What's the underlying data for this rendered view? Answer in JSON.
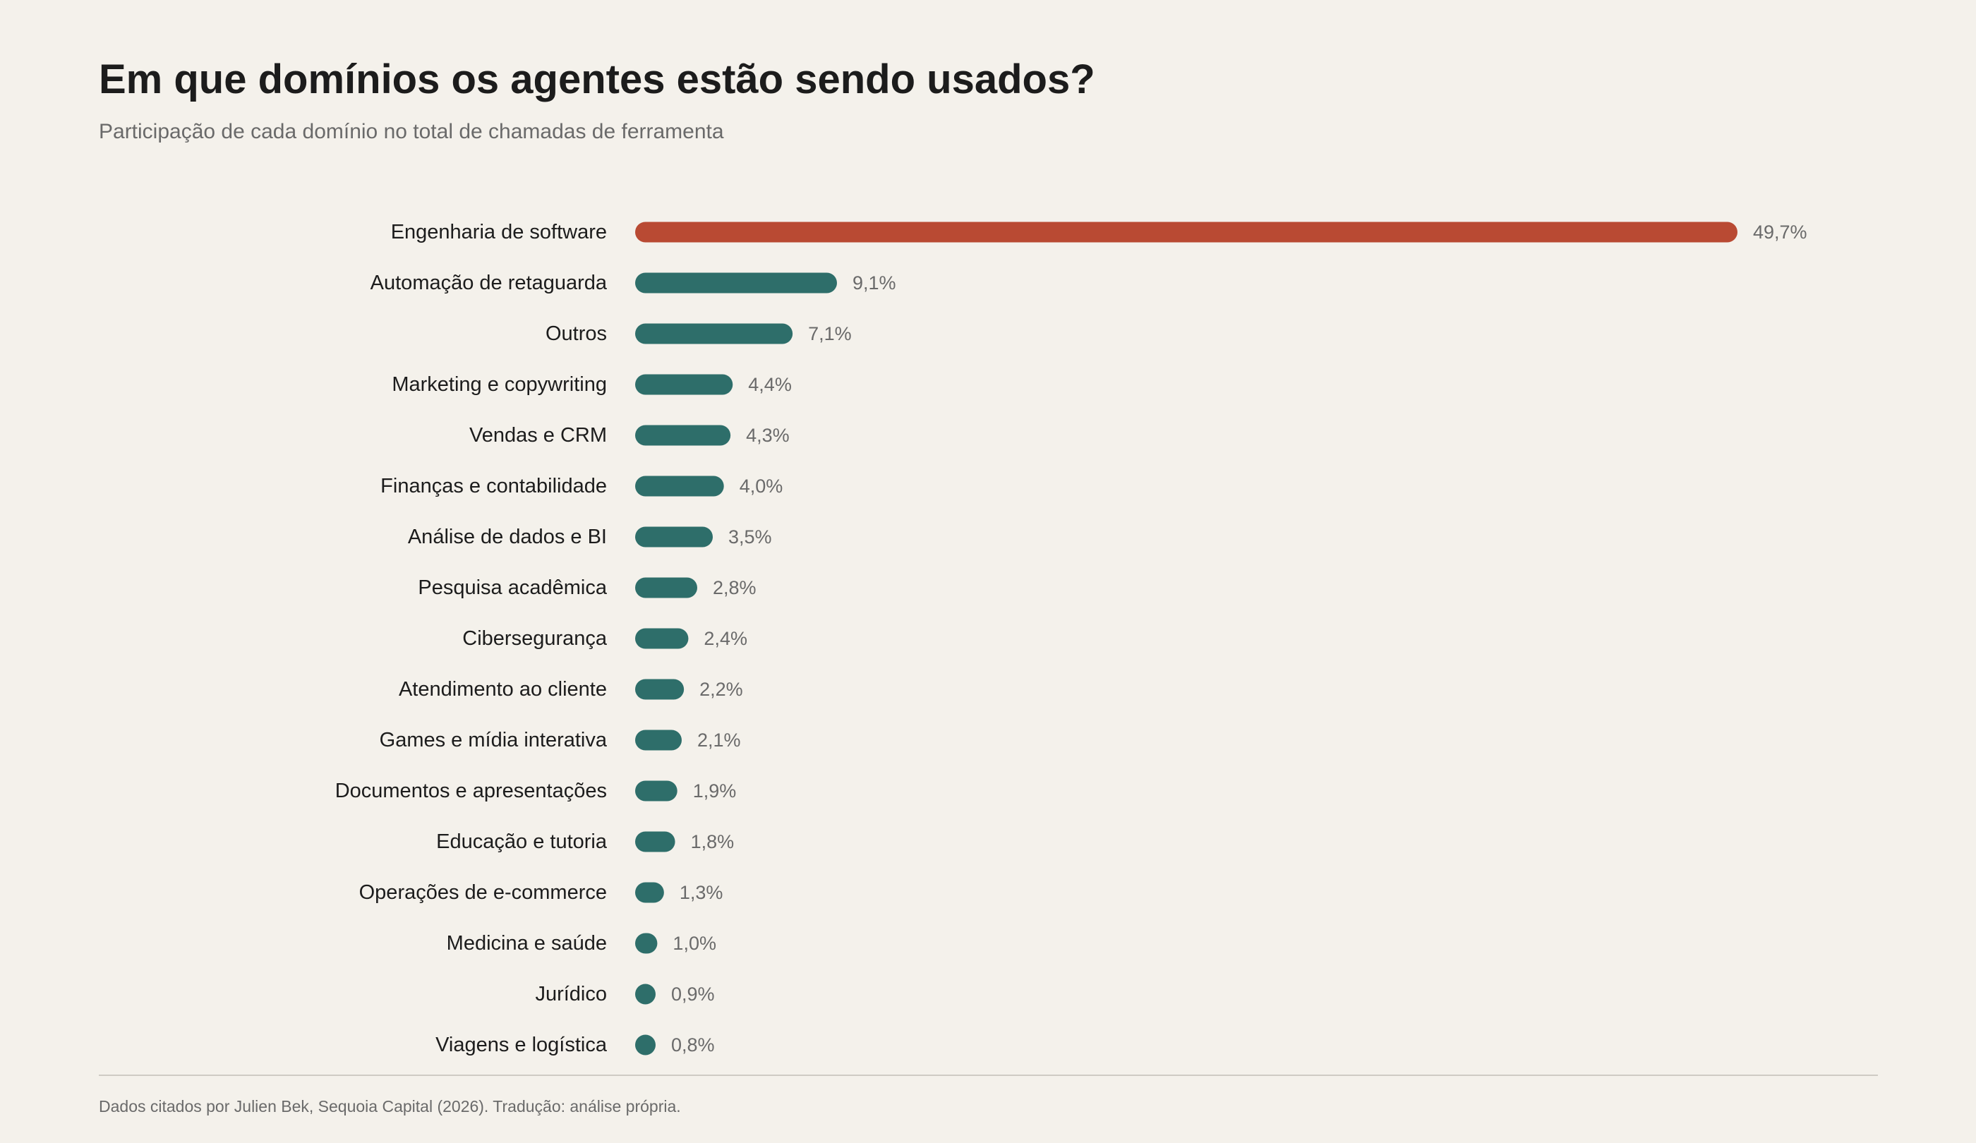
{
  "header": {
    "title": "Em que domínios os agentes estão sendo usados?",
    "subtitle": "Participação de cada domínio no total de chamadas de ferramenta"
  },
  "footer": {
    "source": "Dados citados por Julien Bek, Sequoia Capital (2026). Tradução: análise própria."
  },
  "colors": {
    "background": "#f4f1eb",
    "highlight": "#b94a33",
    "bar": "#2e6e6a"
  },
  "chart_data": {
    "type": "bar",
    "orientation": "horizontal",
    "title": "Em que domínios os agentes estão sendo usados?",
    "subtitle": "Participação de cada domínio no total de chamadas de ferramenta",
    "xlabel": "",
    "ylabel": "",
    "unit": "%",
    "grid": false,
    "legend": "none",
    "highlighted_category": "Engenharia de software",
    "categories": [
      "Engenharia de software",
      "Automação de retaguarda",
      "Outros",
      "Marketing e copywriting",
      "Vendas e CRM",
      "Finanças e contabilidade",
      "Análise de dados e BI",
      "Pesquisa acadêmica",
      "Cibersegurança",
      "Atendimento ao cliente",
      "Games e mídia interativa",
      "Documentos e apresentações",
      "Educação e tutoria",
      "Operações de e-commerce",
      "Medicina e saúde",
      "Jurídico",
      "Viagens e logística"
    ],
    "values": [
      49.7,
      9.1,
      7.1,
      4.4,
      4.3,
      4.0,
      3.5,
      2.8,
      2.4,
      2.2,
      2.1,
      1.9,
      1.8,
      1.3,
      1.0,
      0.9,
      0.8
    ],
    "value_labels": [
      "49,7%",
      "9,1%",
      "7,1%",
      "4,4%",
      "4,3%",
      "4,0%",
      "3,5%",
      "2,8%",
      "2,4%",
      "2,2%",
      "2,1%",
      "1,9%",
      "1,8%",
      "1,3%",
      "1,0%",
      "0,9%",
      "0,8%"
    ],
    "xlim": [
      0,
      49.7
    ]
  }
}
